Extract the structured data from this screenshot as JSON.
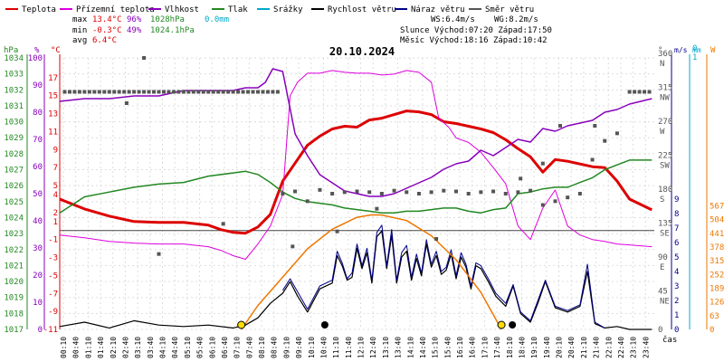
{
  "legend": [
    {
      "label": "Teplota",
      "color": "#dd0000"
    },
    {
      "label": "Přízemní teplota",
      "color": "#dd00dd"
    },
    {
      "label": "Vlhkost",
      "color": "#8800bb"
    },
    {
      "label": "Tlak",
      "color": "#228822"
    },
    {
      "label": "Srážky",
      "color": "#00aacc"
    },
    {
      "label": "Rychlost větru",
      "color": "#000000"
    },
    {
      "label": "Náraz větru",
      "color": "#000088"
    },
    {
      "label": "Směr větru",
      "color": "#555555"
    }
  ],
  "stats": {
    "max_label": "max",
    "max_temp": "13.4°C",
    "max_hum": "96%",
    "max_press": "1028hPa",
    "rain": "0.0mm",
    "min_label": "min",
    "min_temp": "-0.3°C",
    "min_hum": "49%",
    "min_press": "1024.1hPa",
    "avg_label": "avg",
    "avg_temp": "6.4°C",
    "ws": "WS:6.4m/s",
    "wg": "WG:8.2m/s",
    "sun": "Slunce Východ:07:20  Západ:17:50",
    "moon": "Měsíc  Východ:18:16  Západ:10:42"
  },
  "date": "20.10.2024",
  "axis_units": {
    "hpa": "hPa",
    "pct": "%",
    "c": "°C",
    "deg": "°",
    "ms": "m/s",
    "mm": "mm",
    "w": "W"
  },
  "x_unit": "čas",
  "colors": {
    "temp": "#dd0000",
    "ground": "#dd00dd",
    "hum": "#8800bb",
    "press": "#228822",
    "rain": "#00aacc",
    "wind": "#000000",
    "gust": "#000088",
    "dir": "#555555",
    "sun": "#ee7700"
  },
  "chart_data": {
    "type": "line",
    "x_ticks": [
      "00:10",
      "00:40",
      "01:10",
      "01:40",
      "02:10",
      "02:40",
      "03:10",
      "03:40",
      "04:10",
      "04:40",
      "05:10",
      "05:40",
      "06:10",
      "06:40",
      "07:10",
      "07:40",
      "08:10",
      "08:40",
      "09:10",
      "09:40",
      "10:10",
      "10:40",
      "11:10",
      "11:40",
      "12:10",
      "12:40",
      "13:10",
      "13:40",
      "14:10",
      "14:40",
      "15:10",
      "15:40",
      "16:10",
      "16:40",
      "17:10",
      "17:40",
      "18:10",
      "18:40",
      "19:10",
      "19:40",
      "20:10",
      "20:40",
      "21:10",
      "21:40",
      "22:10",
      "22:40",
      "23:10",
      "23:40"
    ],
    "y_axes": {
      "pressure_hpa": {
        "ticks": [
          1017,
          1018,
          1019,
          1020,
          1021,
          1022,
          1023,
          1024,
          1025,
          1026,
          1027,
          1028,
          1029,
          1030,
          1031,
          1032,
          1033,
          1034
        ]
      },
      "humidity_pct": {
        "ticks": [
          0,
          10,
          20,
          30,
          40,
          50,
          60,
          70,
          80,
          90,
          100
        ]
      },
      "temperature_c": {
        "ticks": [
          -11,
          -9,
          -7,
          -5,
          -3,
          -1,
          1,
          2,
          4,
          5,
          7,
          9,
          11,
          13,
          15,
          17
        ]
      },
      "wind_dir_deg": {
        "ticks": [
          {
            "v": 0,
            "t": "0"
          },
          {
            "v": 45,
            "t": "45 NE"
          },
          {
            "v": 90,
            "t": "90 E"
          },
          {
            "v": 135,
            "t": "135 SE"
          },
          {
            "v": 180,
            "t": "180 S"
          },
          {
            "v": 225,
            "t": "225 SW"
          },
          {
            "v": 270,
            "t": "270 W"
          },
          {
            "v": 315,
            "t": "315 NW"
          },
          {
            "v": 360,
            "t": "360 N"
          }
        ]
      },
      "wind_ms": {
        "ticks": [
          0,
          1,
          2,
          3,
          4,
          5,
          6,
          7,
          8,
          9
        ]
      },
      "rain_mm": {
        "ticks": [
          0,
          1
        ]
      },
      "solar_w": {
        "ticks": [
          0,
          63,
          126,
          189,
          252,
          315,
          378,
          441,
          504,
          567
        ]
      }
    },
    "series": [
      {
        "name": "Teplota",
        "axis": "temperature_c",
        "x": [
          0,
          1,
          2,
          3,
          4,
          5,
          6,
          6.5,
          7,
          7.5,
          8,
          8.5,
          9,
          9.5,
          10,
          10.5,
          11,
          11.5,
          12,
          12.5,
          13,
          13.5,
          14,
          14.5,
          15,
          15.5,
          16,
          16.5,
          17,
          17.5,
          18,
          18.5,
          19,
          19.5,
          20,
          20.5,
          21,
          21.5,
          22,
          22.5,
          23,
          23.9
        ],
        "y": [
          3.5,
          2.4,
          1.6,
          1.0,
          0.9,
          0.9,
          0.6,
          0.1,
          -0.2,
          -0.3,
          0.4,
          1.8,
          5.5,
          7.5,
          9.5,
          10.5,
          11.3,
          11.6,
          11.5,
          12.3,
          12.5,
          12.9,
          13.3,
          13.2,
          12.9,
          12.1,
          11.9,
          11.6,
          11.3,
          10.9,
          10.1,
          9.1,
          8.2,
          6.5,
          7.9,
          7.7,
          7.4,
          7.1,
          7.0,
          5.5,
          3.5,
          2.3
        ]
      },
      {
        "name": "Přízemní teplota",
        "axis": "temperature_c",
        "x": [
          0,
          1,
          2,
          3,
          4,
          5,
          6,
          6.5,
          7,
          7.5,
          8,
          8.5,
          9,
          9.3,
          9.6,
          10,
          10.5,
          11,
          11.5,
          12,
          12.5,
          13,
          13.5,
          14,
          14.5,
          15,
          15.3,
          15.7,
          16,
          16.5,
          17,
          17.5,
          18,
          18.5,
          19,
          19.5,
          20,
          20.5,
          21,
          21.5,
          22,
          22.5,
          23,
          23.9
        ],
        "y": [
          -0.5,
          -0.8,
          -1.2,
          -1.4,
          -1.5,
          -1.5,
          -1.8,
          -2.2,
          -2.8,
          -3.2,
          -1.5,
          0.5,
          4,
          15,
          16.5,
          17.5,
          17.5,
          17.8,
          17.6,
          17.5,
          17.5,
          17.3,
          17.4,
          17.8,
          17.6,
          16.5,
          12.5,
          11.5,
          10.3,
          9.8,
          8.7,
          7,
          5.2,
          0.5,
          -1,
          2.5,
          4.5,
          0.5,
          -0.5,
          -1,
          -1.2,
          -1.5,
          -1.6,
          -1.8
        ]
      },
      {
        "name": "Vlhkost",
        "axis": "humidity_pct",
        "x": [
          0,
          1,
          2,
          3,
          4,
          5,
          6,
          7,
          7.5,
          8,
          8.3,
          8.6,
          9,
          9.5,
          10,
          10.5,
          11,
          11.5,
          12,
          12.5,
          13,
          13.5,
          14,
          14.5,
          15,
          15.5,
          16,
          16.5,
          17,
          17.5,
          18,
          18.5,
          19,
          19.5,
          20,
          20.5,
          21,
          21.5,
          22,
          22.5,
          23,
          23.9
        ],
        "y": [
          84,
          85,
          85,
          86,
          86,
          88,
          88,
          88,
          89,
          89,
          91,
          96,
          95,
          72,
          64,
          57,
          54,
          51,
          50,
          49,
          49,
          50,
          52,
          54,
          56,
          59,
          61,
          62,
          66,
          64,
          67,
          70,
          69,
          74,
          73,
          75,
          76,
          77,
          80,
          81,
          83,
          85
        ]
      },
      {
        "name": "Tlak",
        "axis": "pressure_hpa",
        "x": [
          0,
          0.5,
          1,
          2,
          3,
          4,
          5,
          6,
          7,
          7.5,
          8,
          8.5,
          9,
          9.5,
          10,
          10.5,
          11,
          11.5,
          12,
          12.5,
          13,
          13.5,
          14,
          14.5,
          15,
          15.5,
          16,
          16.5,
          17,
          17.5,
          18,
          18.5,
          19,
          19.5,
          20,
          20.5,
          21,
          21.5,
          22,
          22.5,
          23,
          23.9
        ],
        "y": [
          1024.3,
          1024.8,
          1025.3,
          1025.6,
          1025.9,
          1026.1,
          1026.2,
          1026.6,
          1026.8,
          1026.9,
          1026.7,
          1026.2,
          1025.6,
          1025.2,
          1025.0,
          1024.9,
          1024.8,
          1024.6,
          1024.5,
          1024.4,
          1024.3,
          1024.3,
          1024.4,
          1024.4,
          1024.5,
          1024.6,
          1024.6,
          1024.4,
          1024.3,
          1024.5,
          1024.6,
          1025.5,
          1025.6,
          1025.8,
          1025.9,
          1025.9,
          1026.2,
          1026.5,
          1027.0,
          1027.3,
          1027.6,
          1027.6
        ]
      },
      {
        "name": "Rychlost větru",
        "axis": "wind_ms",
        "x": [
          0,
          1,
          2,
          3,
          4,
          5,
          6,
          7,
          7.5,
          8,
          8.5,
          9,
          9.3,
          9.6,
          10,
          10.5,
          11,
          11.2,
          11.4,
          11.6,
          11.8,
          12,
          12.2,
          12.4,
          12.6,
          12.8,
          13,
          13.2,
          13.4,
          13.6,
          13.8,
          14,
          14.2,
          14.4,
          14.6,
          14.8,
          15,
          15.2,
          15.4,
          15.6,
          15.8,
          16,
          16.2,
          16.4,
          16.6,
          16.8,
          17,
          17.3,
          17.6,
          18,
          18.3,
          18.6,
          19,
          19.3,
          19.6,
          20,
          20.5,
          21,
          21.3,
          21.6,
          22,
          22.5,
          23,
          23.9
        ],
        "y": [
          0.2,
          0.5,
          0.1,
          0.6,
          0.3,
          0.2,
          0.3,
          0.1,
          0.3,
          0.8,
          1.8,
          2.5,
          3.3,
          2.3,
          1.2,
          2.8,
          3.2,
          5.1,
          4.4,
          3.4,
          3.6,
          5.6,
          4.2,
          5.3,
          3.2,
          6.4,
          6.8,
          4.2,
          6.5,
          3.2,
          5.0,
          5.4,
          3.4,
          4.9,
          3.7,
          5.9,
          4.3,
          5.1,
          3.8,
          4.1,
          5.2,
          3.5,
          5.0,
          4.3,
          2.8,
          4.4,
          4.2,
          3.3,
          2.3,
          1.6,
          3.0,
          1.1,
          0.5,
          1.8,
          3.3,
          1.5,
          1.2,
          1.6,
          4.0,
          0.4,
          0.1,
          0.2,
          0.0,
          0.0
        ]
      },
      {
        "name": "Náraz větru",
        "axis": "wind_ms",
        "x": [
          9,
          9.3,
          10,
          10.5,
          11,
          11.2,
          11.4,
          11.6,
          11.8,
          12,
          12.2,
          12.4,
          12.6,
          12.8,
          13,
          13.2,
          13.4,
          13.6,
          13.8,
          14,
          14.2,
          14.4,
          14.6,
          14.8,
          15,
          15.2,
          15.4,
          15.6,
          15.8,
          16,
          16.2,
          16.4,
          16.6,
          16.8,
          17,
          17.3,
          17.6,
          18,
          18.3,
          18.6,
          19,
          19.6,
          20,
          20.5,
          21,
          21.3,
          21.6,
          22
        ],
        "y": [
          2.7,
          3.5,
          1.4,
          3.0,
          3.4,
          5.4,
          4.6,
          3.5,
          3.9,
          5.9,
          4.4,
          5.6,
          3.4,
          6.7,
          7.2,
          4.4,
          6.9,
          3.4,
          5.3,
          5.8,
          3.6,
          5.2,
          3.9,
          6.2,
          4.5,
          5.4,
          4.0,
          4.3,
          5.5,
          3.7,
          5.3,
          4.5,
          3.0,
          4.6,
          4.4,
          3.5,
          2.5,
          1.8,
          3.1,
          1.2,
          0.6,
          3.4,
          1.6,
          1.3,
          1.7,
          4.5,
          0.5,
          0.1
        ]
      },
      {
        "name": "Slunce",
        "axis": "solar_w",
        "x": [
          7.33,
          8,
          9,
          10,
          11,
          12,
          12.6,
          13,
          14,
          15,
          16,
          17,
          17.83
        ],
        "y": [
          0,
          110,
          240,
          370,
          460,
          515,
          526,
          525,
          500,
          430,
          320,
          170,
          0
        ]
      },
      {
        "name": "Směr větru",
        "axis": "wind_dir_deg",
        "x": [
          0.2,
          0.4,
          0.6,
          0.8,
          1,
          1.2,
          1.4,
          1.6,
          1.8,
          2,
          2.2,
          2.4,
          2.6,
          2.8,
          3,
          3.2,
          3.4,
          3.6,
          3.8,
          4,
          4.2,
          4.4,
          4.6,
          4.8,
          5,
          5.2,
          5.4,
          5.6,
          5.8,
          6,
          6.2,
          6.4,
          6.6,
          6.8,
          7,
          7.2,
          7.4,
          7.6,
          7.8,
          8,
          8.2,
          8.4,
          8.6,
          8.8,
          9,
          9.5,
          10,
          10.5,
          11,
          11.5,
          12,
          12.5,
          13,
          13.5,
          14,
          14.5,
          15,
          15.5,
          16,
          16.5,
          17,
          17.5,
          18,
          18.5,
          19,
          19.5,
          20,
          20.5,
          21,
          21.5,
          22,
          22.5,
          23,
          23.2,
          23.4,
          23.6,
          23.8,
          3.4,
          4,
          6.6,
          9.4,
          11.2,
          12.8,
          15.2,
          18.6,
          19.5,
          20.2,
          21.6,
          2.7
        ],
        "y": [
          315,
          315,
          315,
          315,
          315,
          315,
          315,
          315,
          315,
          315,
          315,
          315,
          315,
          315,
          315,
          315,
          315,
          315,
          315,
          315,
          315,
          315,
          315,
          315,
          315,
          315,
          315,
          315,
          315,
          315,
          315,
          315,
          315,
          315,
          315,
          315,
          315,
          315,
          315,
          315,
          315,
          315,
          315,
          315,
          180,
          183,
          170,
          185,
          180,
          182,
          183,
          182,
          180,
          184,
          182,
          180,
          182,
          184,
          183,
          180,
          182,
          183,
          180,
          182,
          184,
          165,
          170,
          175,
          180,
          225,
          250,
          260,
          315,
          315,
          315,
          315,
          315,
          360,
          100,
          140,
          110,
          130,
          160,
          120,
          200,
          220,
          270,
          270,
          300
        ]
      }
    ]
  }
}
